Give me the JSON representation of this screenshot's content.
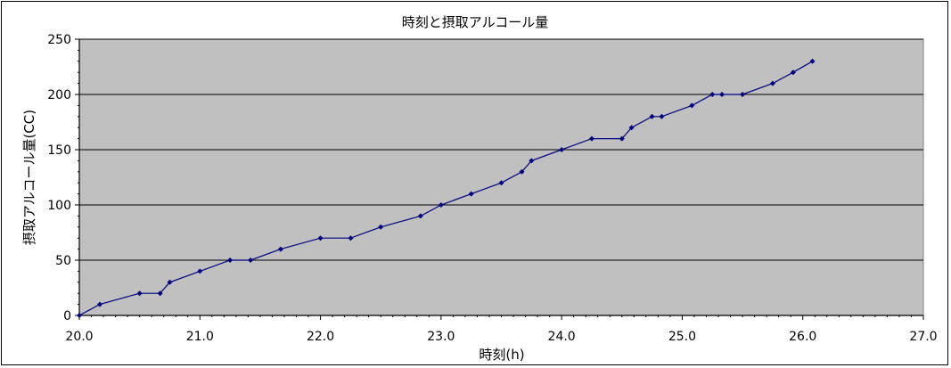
{
  "chart_data": {
    "type": "line",
    "title": "時刻と摂取アルコール量",
    "xlabel": "時刻(h)",
    "ylabel": "摂取アルコール量(CC)",
    "xlim": [
      20.0,
      27.0
    ],
    "ylim": [
      0,
      250
    ],
    "x_ticks": [
      "20.0",
      "21.0",
      "22.0",
      "23.0",
      "24.0",
      "25.0",
      "26.0",
      "27.0"
    ],
    "y_ticks": [
      "0",
      "50",
      "100",
      "150",
      "200",
      "250"
    ],
    "grid": "horizontal",
    "legend": "none",
    "colors": {
      "plot_background": "#c0c0c0",
      "series_line": "#000080",
      "grid_line": "#000000"
    },
    "series": [
      {
        "x": [
          20.0,
          20.17,
          20.5,
          20.67,
          20.75,
          21.0,
          21.25,
          21.42,
          21.67,
          22.0,
          22.25,
          22.5,
          22.83,
          23.0,
          23.25,
          23.5,
          23.67,
          23.75,
          24.0,
          24.25,
          24.5,
          24.58,
          24.75,
          24.83,
          25.08,
          25.25,
          25.33,
          25.5,
          25.75,
          25.92,
          26.08
        ],
        "values": [
          0,
          10,
          20,
          20,
          30,
          40,
          50,
          50,
          60,
          70,
          70,
          80,
          90,
          100,
          110,
          120,
          130,
          140,
          150,
          160,
          160,
          170,
          180,
          180,
          190,
          200,
          200,
          200,
          210,
          220,
          230
        ]
      }
    ]
  }
}
